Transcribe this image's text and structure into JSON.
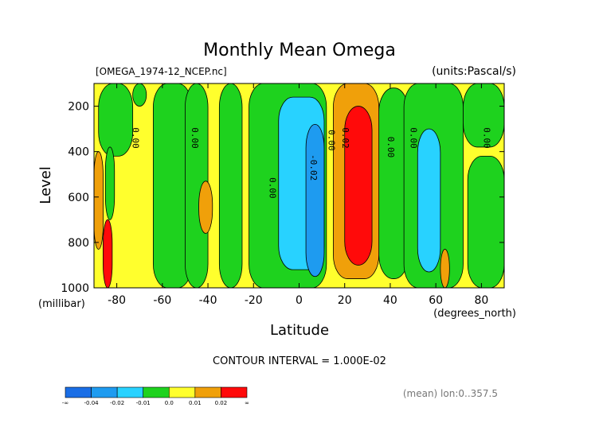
{
  "chart_data": {
    "type": "heatmap",
    "title": "Monthly Mean Omega",
    "file_label": "[OMEGA_1974-12_NCEP.nc]",
    "units_label": "(units:Pascal/s)",
    "xlabel": "Latitude",
    "xunit_label": "(degrees_north)",
    "ylabel": "Level",
    "yunit_label": "(millibar)",
    "xlim": [
      -90,
      90
    ],
    "ylim": [
      1000,
      100
    ],
    "x_ticks": [
      -80,
      -60,
      -40,
      -20,
      0,
      20,
      40,
      60,
      80
    ],
    "x_tick_labels": [
      "-80",
      "-60",
      "-40",
      "-20",
      "0",
      "20",
      "40",
      "60",
      "80"
    ],
    "y_ticks": [
      200,
      400,
      600,
      800,
      1000
    ],
    "y_tick_labels": [
      "200",
      "400",
      "600",
      "800",
      "1000"
    ],
    "contour_interval_label": "CONTOUR INTERVAL = 1.000E-02",
    "footnote": "(mean) lon:0..357.5",
    "contour_labels": [
      {
        "text": "0.00",
        "lat": -73,
        "level": 340
      },
      {
        "text": "0.00",
        "lat": -47,
        "level": 340
      },
      {
        "text": "0.00",
        "lat": -13,
        "level": 560
      },
      {
        "text": "-0.02",
        "lat": 5,
        "level": 470
      },
      {
        "text": "0.00",
        "lat": 13,
        "level": 350
      },
      {
        "text": "0.02",
        "lat": 19,
        "level": 340
      },
      {
        "text": "0.00",
        "lat": 39,
        "level": 380
      },
      {
        "text": "0.00",
        "lat": 49,
        "level": 340
      },
      {
        "text": "0.00",
        "lat": 81,
        "level": 340
      }
    ],
    "colorbar": {
      "labels": [
        "-∞",
        "-0.04",
        "-0.02",
        "-0.01",
        "0.0",
        "0.01",
        "0.02",
        "∞"
      ],
      "colors": [
        "#1a6ee6",
        "#1e9bf0",
        "#28d2ff",
        "#1ed21e",
        "#ffff2d",
        "#f0a00a",
        "#ff0a0a"
      ]
    },
    "colors": {
      "neg3": "#1a6ee6",
      "neg2": "#1e9bf0",
      "neg1": "#28d2ff",
      "zero_neg": "#1ed21e",
      "zero_pos": "#ffff2d",
      "pos1": "#f0a00a",
      "pos2": "#ff0a0a"
    },
    "omega_fields": {
      "background": "zero_pos",
      "bands": [
        {
          "class": "zero_neg",
          "lat": [
            -88,
            -73
          ],
          "level": [
            100,
            420
          ]
        },
        {
          "class": "zero_neg",
          "lat": [
            -85,
            -81
          ],
          "level": [
            380,
            700
          ]
        },
        {
          "class": "zero_neg",
          "lat": [
            -73,
            -67
          ],
          "level": [
            100,
            200
          ]
        },
        {
          "class": "zero_neg",
          "lat": [
            -64,
            -47
          ],
          "level": [
            100,
            1000
          ]
        },
        {
          "class": "zero_neg",
          "lat": [
            -50,
            -40
          ],
          "level": [
            100,
            1000
          ]
        },
        {
          "class": "zero_neg",
          "lat": [
            -35,
            -25
          ],
          "level": [
            100,
            1000
          ]
        },
        {
          "class": "zero_neg",
          "lat": [
            -22,
            12
          ],
          "level": [
            100,
            1000
          ]
        },
        {
          "class": "neg1",
          "lat": [
            -9,
            11
          ],
          "level": [
            160,
            920
          ]
        },
        {
          "class": "neg2",
          "lat": [
            3,
            11
          ],
          "level": [
            280,
            950
          ]
        },
        {
          "class": "zero_neg",
          "lat": [
            35,
            48
          ],
          "level": [
            120,
            960
          ]
        },
        {
          "class": "zero_neg",
          "lat": [
            46,
            72
          ],
          "level": [
            100,
            1000
          ]
        },
        {
          "class": "neg1",
          "lat": [
            52,
            62
          ],
          "level": [
            300,
            930
          ]
        },
        {
          "class": "zero_neg",
          "lat": [
            72,
            90
          ],
          "level": [
            100,
            380
          ]
        },
        {
          "class": "zero_neg",
          "lat": [
            74,
            90
          ],
          "level": [
            420,
            1000
          ]
        },
        {
          "class": "pos1",
          "lat": [
            15,
            35
          ],
          "level": [
            100,
            960
          ]
        },
        {
          "class": "pos2",
          "lat": [
            20,
            32
          ],
          "level": [
            200,
            900
          ]
        },
        {
          "class": "pos1",
          "lat": [
            -90,
            -86
          ],
          "level": [
            400,
            830
          ]
        },
        {
          "class": "pos2",
          "lat": [
            -86,
            -82
          ],
          "level": [
            700,
            1000
          ]
        },
        {
          "class": "pos1",
          "lat": [
            -44,
            -38
          ],
          "level": [
            530,
            760
          ]
        },
        {
          "class": "pos1",
          "lat": [
            62,
            66
          ],
          "level": [
            830,
            1000
          ]
        }
      ]
    }
  }
}
